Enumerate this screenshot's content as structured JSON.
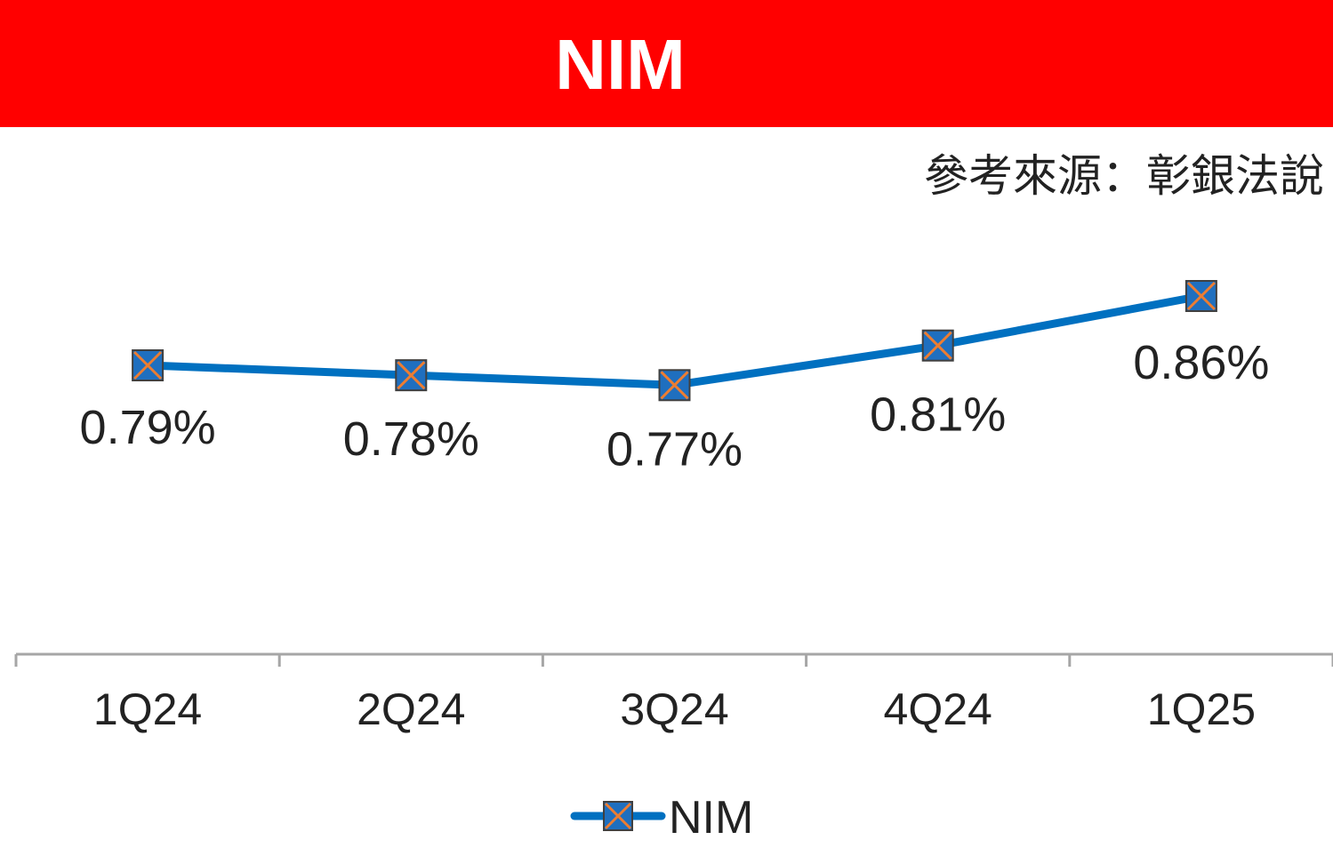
{
  "header": {
    "title": "NIM"
  },
  "source_note": "參考來源：彰銀法說",
  "colors": {
    "title_bar": "#ff0000",
    "line": "#0070c0",
    "marker_fill": "#1f6fbf",
    "marker_cross": "#ed7d31",
    "axis": "#a6a6a6"
  },
  "chart_data": {
    "type": "line",
    "title": "NIM",
    "categories": [
      "1Q24",
      "2Q24",
      "3Q24",
      "4Q24",
      "1Q25"
    ],
    "series": [
      {
        "name": "NIM",
        "values": [
          0.79,
          0.78,
          0.77,
          0.81,
          0.86
        ],
        "labels": [
          "0.79%",
          "0.78%",
          "0.77%",
          "0.81%",
          "0.86%"
        ],
        "marker": "x-square"
      }
    ],
    "xlabel": "",
    "ylabel": "",
    "grid": false,
    "legend": "bottom"
  }
}
